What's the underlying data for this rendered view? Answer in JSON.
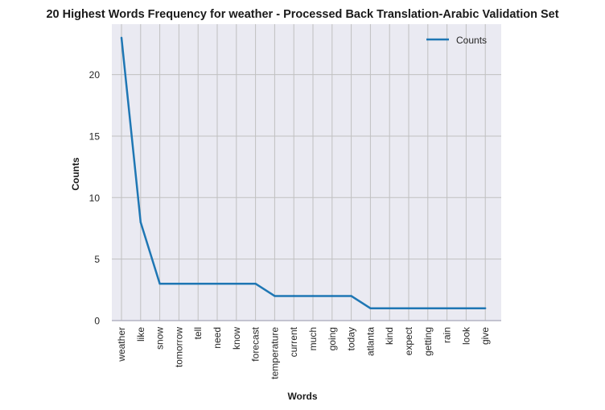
{
  "chart_data": {
    "type": "line",
    "title": "20 Highest Words Frequency for weather - Processed Back Translation-Arabic Validation Set",
    "xlabel": "Words",
    "ylabel": "Counts",
    "categories": [
      "weather",
      "like",
      "snow",
      "tomorrow",
      "tell",
      "need",
      "know",
      "forecast",
      "temperature",
      "current",
      "much",
      "going",
      "today",
      "atlanta",
      "kind",
      "expect",
      "getting",
      "rain",
      "look",
      "give"
    ],
    "series": [
      {
        "name": "Counts",
        "values": [
          23,
          8,
          3,
          3,
          3,
          3,
          3,
          3,
          2,
          2,
          2,
          2,
          2,
          1,
          1,
          1,
          1,
          1,
          1,
          1
        ]
      }
    ],
    "yticks": [
      0,
      5,
      10,
      15,
      20
    ],
    "ylim": [
      0,
      24.1
    ],
    "grid": true,
    "legend_position": "top-right",
    "colors": {
      "line": "#1f77b4",
      "plot_bg": "#eaeaf2",
      "grid": "#c0c0c0"
    }
  }
}
